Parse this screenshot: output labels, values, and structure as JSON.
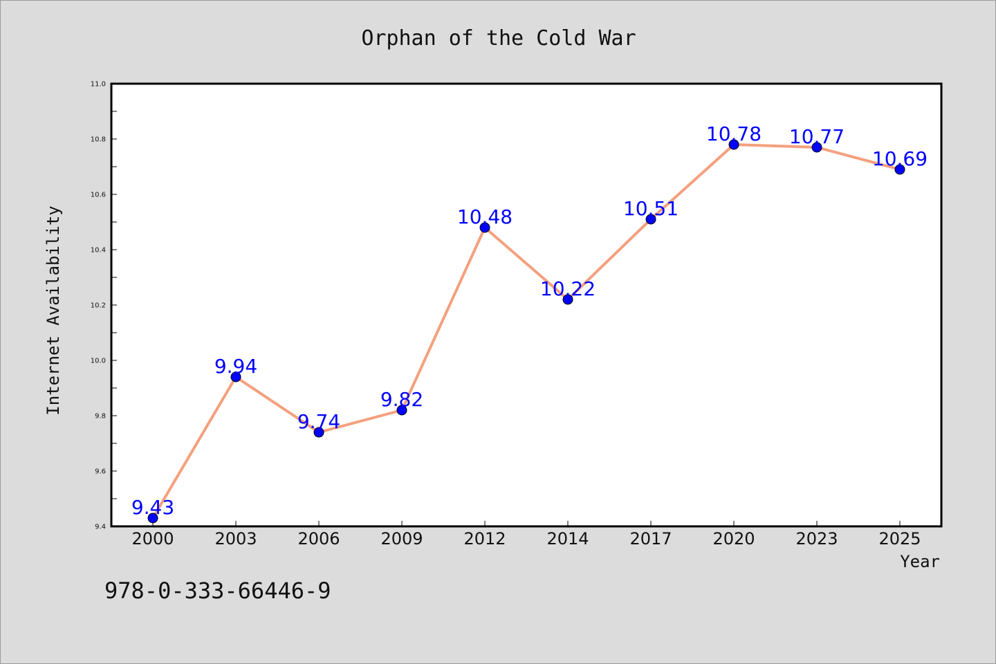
{
  "chart_data": {
    "type": "line",
    "title": "Orphan of the Cold War",
    "xlabel": "Year",
    "ylabel": "Internet Availability",
    "categories": [
      "2000",
      "2003",
      "2006",
      "2009",
      "2012",
      "2014",
      "2017",
      "2020",
      "2023",
      "2025"
    ],
    "series": [
      {
        "values": [
          9.43,
          9.94,
          9.74,
          9.82,
          10.48,
          10.22,
          10.51,
          10.78,
          10.77,
          10.69
        ],
        "labels": [
          "9.43",
          "9.94",
          "9.74",
          "9.82",
          "10.48",
          "10.22",
          "10.51",
          "10.78",
          "10.77",
          "10.69"
        ],
        "line_color": "#f4a07e",
        "marker_color": "#0000ff",
        "label_color": "#0000ff"
      }
    ],
    "ylim": [
      9.4,
      11.0
    ],
    "yticks": [
      "9.4",
      "9.6",
      "9.8",
      "10.0",
      "10.2",
      "10.4",
      "10.6",
      "10.8",
      "11.0"
    ],
    "grid": false,
    "legend": "none",
    "background_color": "#dcdcdc",
    "plot_background_color": "#ffffff"
  },
  "footer_text": "978-0-333-66446-9"
}
